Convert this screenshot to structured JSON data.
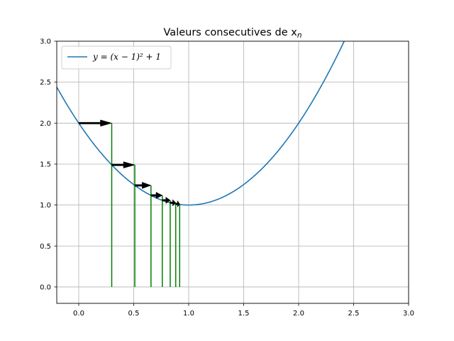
{
  "chart_data": {
    "type": "line",
    "title": "Valeurs consecutives de x",
    "title_subscript": "n",
    "xlim": [
      -0.2,
      3.0
    ],
    "ylim": [
      -0.2,
      3.0
    ],
    "x_ticks": [
      0.0,
      0.5,
      1.0,
      1.5,
      2.0,
      2.5,
      3.0
    ],
    "x_tick_labels": [
      "0.0",
      "0.5",
      "1.0",
      "1.5",
      "2.0",
      "2.5",
      "3.0"
    ],
    "y_ticks": [
      0.0,
      0.5,
      1.0,
      1.5,
      2.0,
      2.5,
      3.0
    ],
    "y_tick_labels": [
      "0.0",
      "0.5",
      "1.0",
      "1.5",
      "2.0",
      "2.5",
      "3.0"
    ],
    "grid": true,
    "legend_position": "upper-left",
    "series": [
      {
        "name": "y = (x − 1)² + 1",
        "formula": "(x-1)^2+1",
        "color": "#1f77b4"
      }
    ],
    "arrows": [
      {
        "x_start": 0.0,
        "x_end": 0.3,
        "y": 2.0
      },
      {
        "x_start": 0.3,
        "x_end": 0.51,
        "y": 1.49
      },
      {
        "x_start": 0.51,
        "x_end": 0.657,
        "y": 1.24
      },
      {
        "x_start": 0.657,
        "x_end": 0.76,
        "y": 1.118
      },
      {
        "x_start": 0.76,
        "x_end": 0.832,
        "y": 1.058
      },
      {
        "x_start": 0.832,
        "x_end": 0.882,
        "y": 1.028
      },
      {
        "x_start": 0.882,
        "x_end": 0.918,
        "y": 1.014
      }
    ],
    "vertical_lines": {
      "color": "#008000",
      "points": [
        {
          "x": 0.3,
          "y": 2.0
        },
        {
          "x": 0.51,
          "y": 1.49
        },
        {
          "x": 0.657,
          "y": 1.24
        },
        {
          "x": 0.76,
          "y": 1.118
        },
        {
          "x": 0.832,
          "y": 1.058
        },
        {
          "x": 0.882,
          "y": 1.028
        },
        {
          "x": 0.918,
          "y": 1.014
        }
      ]
    }
  }
}
